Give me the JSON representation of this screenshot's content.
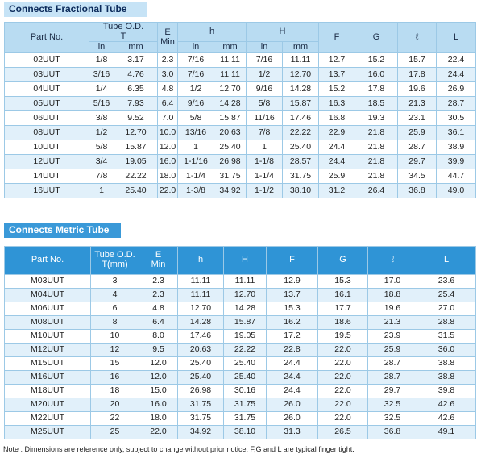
{
  "table1": {
    "title": "Connects Fractional Tube",
    "header": [
      "Part No.",
      "Tube O.D.\nT",
      "E\nMin",
      "h",
      "H",
      "F",
      "G",
      "ℓ",
      "L"
    ],
    "subheader": [
      "in",
      "mm",
      "in",
      "mm",
      "in",
      "mm"
    ],
    "rows": [
      [
        "02UUT",
        "1/8",
        "3.17",
        "2.3",
        "7/16",
        "11.11",
        "7/16",
        "11.11",
        "12.7",
        "15.2",
        "15.7",
        "22.4"
      ],
      [
        "03UUT",
        "3/16",
        "4.76",
        "3.0",
        "7/16",
        "11.11",
        "1/2",
        "12.70",
        "13.7",
        "16.0",
        "17.8",
        "24.4"
      ],
      [
        "04UUT",
        "1/4",
        "6.35",
        "4.8",
        "1/2",
        "12.70",
        "9/16",
        "14.28",
        "15.2",
        "17.8",
        "19.6",
        "26.9"
      ],
      [
        "05UUT",
        "5/16",
        "7.93",
        "6.4",
        "9/16",
        "14.28",
        "5/8",
        "15.87",
        "16.3",
        "18.5",
        "21.3",
        "28.7"
      ],
      [
        "06UUT",
        "3/8",
        "9.52",
        "7.0",
        "5/8",
        "15.87",
        "11/16",
        "17.46",
        "16.8",
        "19.3",
        "23.1",
        "30.5"
      ],
      [
        "08UUT",
        "1/2",
        "12.70",
        "10.0",
        "13/16",
        "20.63",
        "7/8",
        "22.22",
        "22.9",
        "21.8",
        "25.9",
        "36.1"
      ],
      [
        "10UUT",
        "5/8",
        "15.87",
        "12.0",
        "1",
        "25.40",
        "1",
        "25.40",
        "24.4",
        "21.8",
        "28.7",
        "38.9"
      ],
      [
        "12UUT",
        "3/4",
        "19.05",
        "16.0",
        "1-1/16",
        "26.98",
        "1-1/8",
        "28.57",
        "24.4",
        "21.8",
        "29.7",
        "39.9"
      ],
      [
        "14UUT",
        "7/8",
        "22.22",
        "18.0",
        "1-1/4",
        "31.75",
        "1-1/4",
        "31.75",
        "25.9",
        "21.8",
        "34.5",
        "44.7"
      ],
      [
        "16UUT",
        "1",
        "25.40",
        "22.0",
        "1-3/8",
        "34.92",
        "1-1/2",
        "38.10",
        "31.2",
        "26.4",
        "36.8",
        "49.0"
      ]
    ]
  },
  "table2": {
    "title": "Connects Metric Tube",
    "header": [
      "Part No.",
      "Tube O.D.\nT(mm)",
      "E\nMin",
      "h",
      "H",
      "F",
      "G",
      "ℓ",
      "L"
    ],
    "rows": [
      [
        "M03UUT",
        "3",
        "2.3",
        "11.11",
        "11.11",
        "12.9",
        "15.3",
        "17.0",
        "23.6"
      ],
      [
        "M04UUT",
        "4",
        "2.3",
        "11.11",
        "12.70",
        "13.7",
        "16.1",
        "18.8",
        "25.4"
      ],
      [
        "M06UUT",
        "6",
        "4.8",
        "12.70",
        "14.28",
        "15.3",
        "17.7",
        "19.6",
        "27.0"
      ],
      [
        "M08UUT",
        "8",
        "6.4",
        "14.28",
        "15.87",
        "16.2",
        "18.6",
        "21.3",
        "28.8"
      ],
      [
        "M10UUT",
        "10",
        "8.0",
        "17.46",
        "19.05",
        "17.2",
        "19.5",
        "23.9",
        "31.5"
      ],
      [
        "M12UUT",
        "12",
        "9.5",
        "20.63",
        "22.22",
        "22.8",
        "22.0",
        "25.9",
        "36.0"
      ],
      [
        "M15UUT",
        "15",
        "12.0",
        "25.40",
        "25.40",
        "24.4",
        "22.0",
        "28.7",
        "38.8"
      ],
      [
        "M16UUT",
        "16",
        "12.0",
        "25.40",
        "25.40",
        "24.4",
        "22.0",
        "28.7",
        "38.8"
      ],
      [
        "M18UUT",
        "18",
        "15.0",
        "26.98",
        "30.16",
        "24.4",
        "22.0",
        "29.7",
        "39.8"
      ],
      [
        "M20UUT",
        "20",
        "16.0",
        "31.75",
        "31.75",
        "26.0",
        "22.0",
        "32.5",
        "42.6"
      ],
      [
        "M22UUT",
        "22",
        "18.0",
        "31.75",
        "31.75",
        "26.0",
        "22.0",
        "32.5",
        "42.6"
      ],
      [
        "M25UUT",
        "25",
        "22.0",
        "34.92",
        "38.10",
        "31.3",
        "26.5",
        "36.8",
        "49.1"
      ]
    ]
  },
  "note": "Note : Dimensions are reference only, subject to change without prior notice.  F,G and L are typical finger tight."
}
